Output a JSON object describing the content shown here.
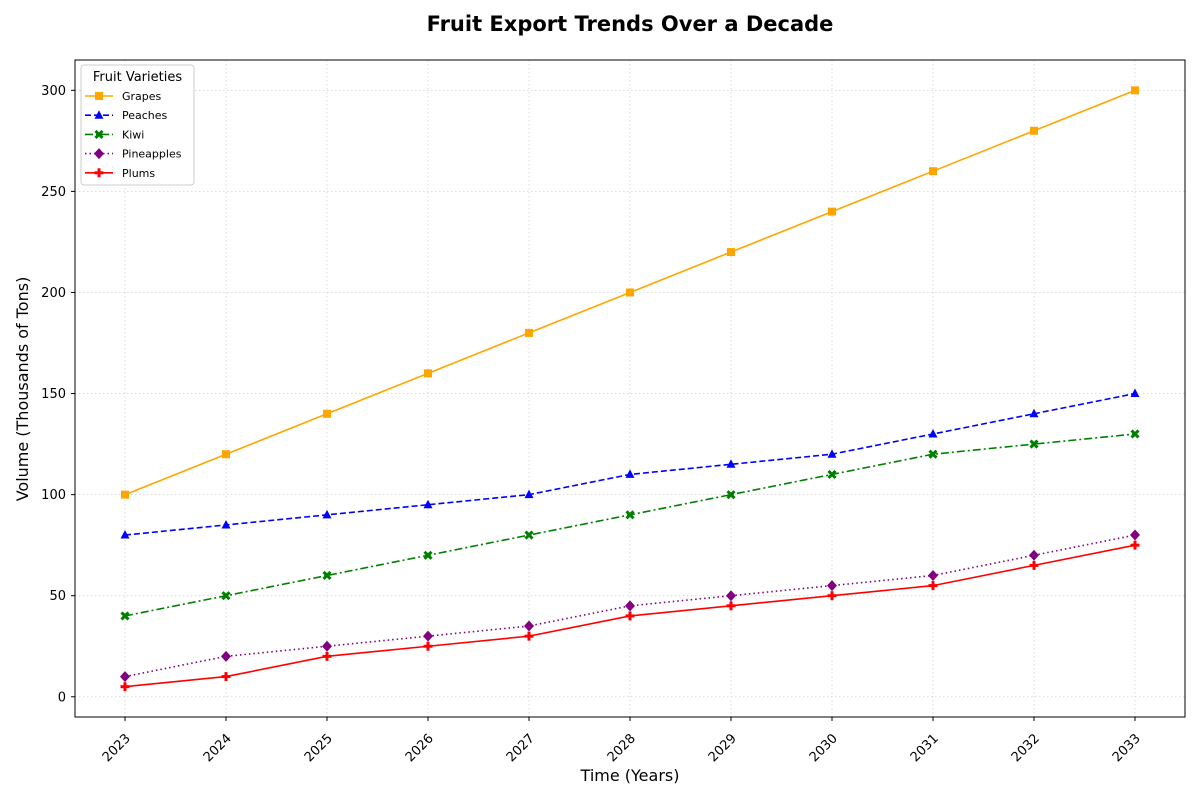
{
  "chart_data": {
    "type": "line",
    "title": "Fruit Export Trends Over a Decade",
    "xlabel": "Time (Years)",
    "ylabel": "Volume (Thousands of Tons)",
    "x": [
      "2023",
      "2024",
      "2025",
      "2026",
      "2027",
      "2028",
      "2029",
      "2030",
      "2031",
      "2032",
      "2033"
    ],
    "ylim": [
      -10,
      315
    ],
    "yticks": [
      0,
      50,
      100,
      150,
      200,
      250,
      300
    ],
    "grid": true,
    "legend": {
      "title": "Fruit Varieties",
      "placement": "top-left"
    },
    "series": [
      {
        "name": "Grapes",
        "color": "#FFA500",
        "line_style": "solid",
        "marker": "square",
        "values": [
          100,
          120,
          140,
          160,
          180,
          200,
          220,
          240,
          260,
          280,
          300
        ]
      },
      {
        "name": "Peaches",
        "color": "#0000FF",
        "line_style": "dashed",
        "marker": "triangle-up",
        "values": [
          80,
          85,
          90,
          95,
          100,
          110,
          115,
          120,
          130,
          140,
          150
        ]
      },
      {
        "name": "Kiwi",
        "color": "#008000",
        "line_style": "dash-dot",
        "marker": "x-filled",
        "values": [
          40,
          50,
          60,
          70,
          80,
          90,
          100,
          110,
          120,
          125,
          130
        ]
      },
      {
        "name": "Pineapples",
        "color": "#800080",
        "line_style": "dotted",
        "marker": "diamond",
        "values": [
          10,
          20,
          25,
          30,
          35,
          45,
          50,
          55,
          60,
          70,
          80
        ]
      },
      {
        "name": "Plums",
        "color": "#FF0000",
        "line_style": "solid",
        "marker": "plus-filled",
        "values": [
          5,
          10,
          20,
          25,
          30,
          40,
          45,
          50,
          55,
          65,
          75
        ]
      }
    ]
  }
}
